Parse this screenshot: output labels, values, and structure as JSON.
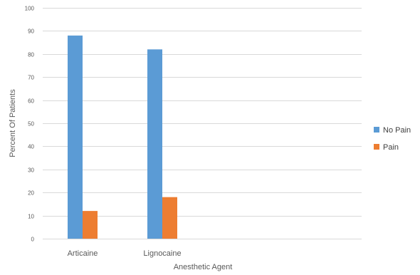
{
  "chart_data": {
    "type": "bar",
    "title": "",
    "xlabel": "Anesthetic Agent",
    "ylabel": "Percent Of Patients",
    "categories": [
      "Articaine",
      "Lignocaine",
      "",
      ""
    ],
    "ylim": [
      0,
      100
    ],
    "yticks": [
      0,
      10,
      20,
      30,
      40,
      50,
      60,
      70,
      80,
      90,
      100
    ],
    "grid": true,
    "legend_position": "right",
    "series": [
      {
        "name": "No Pain",
        "color": "#5b9bd5",
        "values": [
          88,
          82,
          null,
          null
        ]
      },
      {
        "name": "Pain",
        "color": "#ed7d31",
        "values": [
          12,
          18,
          null,
          null
        ]
      }
    ]
  }
}
